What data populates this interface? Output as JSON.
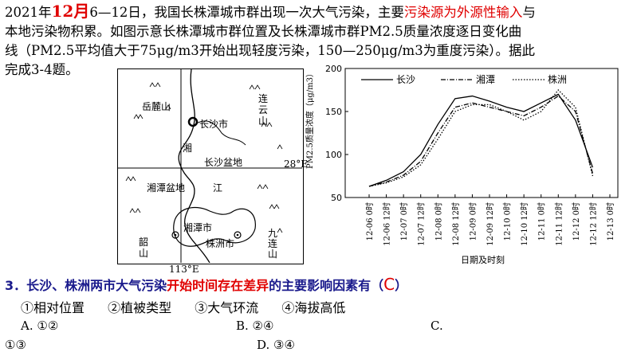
{
  "intro": {
    "p1": "2021年",
    "month": "12月",
    "p2": "6—12日，我国长株潭城市群出现一次大气污染，主要",
    "red_text": "污染源为外源性输入",
    "p3": "与",
    "line2": "本地污染物积累。如图示意长株潭城市群位置及长株潭城市群PM2.5质量浓度逐日变化曲",
    "line3": "线（PM2.5平均值大于75μg/m3开始出现轻度污染，150—250μg/m3为重度污染）。据此",
    "line4": "完成3-4题。"
  },
  "map": {
    "labels": {
      "yuelu": "岳麓山",
      "lianyun": "连云山",
      "changsha_city": "长沙市",
      "xiang": "湘",
      "changsha_basin": "长沙盆地",
      "lat": "28°E",
      "xiangtan_basin": "湘潭盆地",
      "jiang": "江",
      "xiangtan_city": "湘潭市",
      "zhuzhou_city": "株洲市",
      "shaoshan": "韶山",
      "jiulian": "九连山",
      "lon": "113°E"
    }
  },
  "chart_data": {
    "type": "line",
    "ylabel": "PM2.5质量浓度（μg/m3）",
    "xlabel": "日期及时刻",
    "ylim": [
      50,
      200
    ],
    "yticks": [
      50,
      100,
      150,
      200
    ],
    "x_tick_labels": [
      "12-06 0时",
      "12-06 12时",
      "12-07 0时",
      "12-07 12时",
      "12-08 0时",
      "12-08 12时",
      "12-09 0时",
      "12-09 12时",
      "12-10 0时",
      "12-10 12时",
      "12-11 0时",
      "12-11 12时",
      "12-12 0时",
      "12-12 12时",
      "12-13 0时"
    ],
    "series": [
      {
        "name": "长沙",
        "style": "solid",
        "x": [
          0,
          1,
          2,
          3,
          4,
          5,
          6,
          7,
          8,
          9,
          10,
          11,
          12,
          13
        ],
        "values": [
          63,
          70,
          80,
          100,
          135,
          165,
          168,
          162,
          155,
          150,
          160,
          170,
          140,
          85
        ]
      },
      {
        "name": "湘潭",
        "style": "dashdot",
        "x": [
          0,
          1,
          2,
          3,
          4,
          5,
          6,
          7,
          8,
          9,
          10,
          11,
          12,
          13
        ],
        "values": [
          63,
          68,
          76,
          92,
          125,
          155,
          160,
          155,
          150,
          145,
          155,
          168,
          150,
          78
        ]
      },
      {
        "name": "株洲",
        "style": "dotted",
        "x": [
          0,
          1,
          2,
          3,
          4,
          5,
          6,
          7,
          8,
          9,
          10,
          11,
          12,
          13
        ],
        "values": [
          63,
          67,
          74,
          88,
          118,
          150,
          158,
          158,
          150,
          140,
          150,
          175,
          155,
          75
        ]
      }
    ]
  },
  "question": {
    "text_a": "3．长沙、株洲两市大气污染",
    "text_red": "开始时间存在差异",
    "text_b": "的主要影响因素有（",
    "answer": "C",
    "text_c": "）",
    "choices": [
      "①相对位置",
      "②植被类型",
      "③大气环流",
      "④海拔高低"
    ],
    "options": {
      "A": "A. ①②",
      "B": "B. ②④",
      "C": "C.",
      "C2": "①③",
      "D": "D. ③④"
    }
  }
}
